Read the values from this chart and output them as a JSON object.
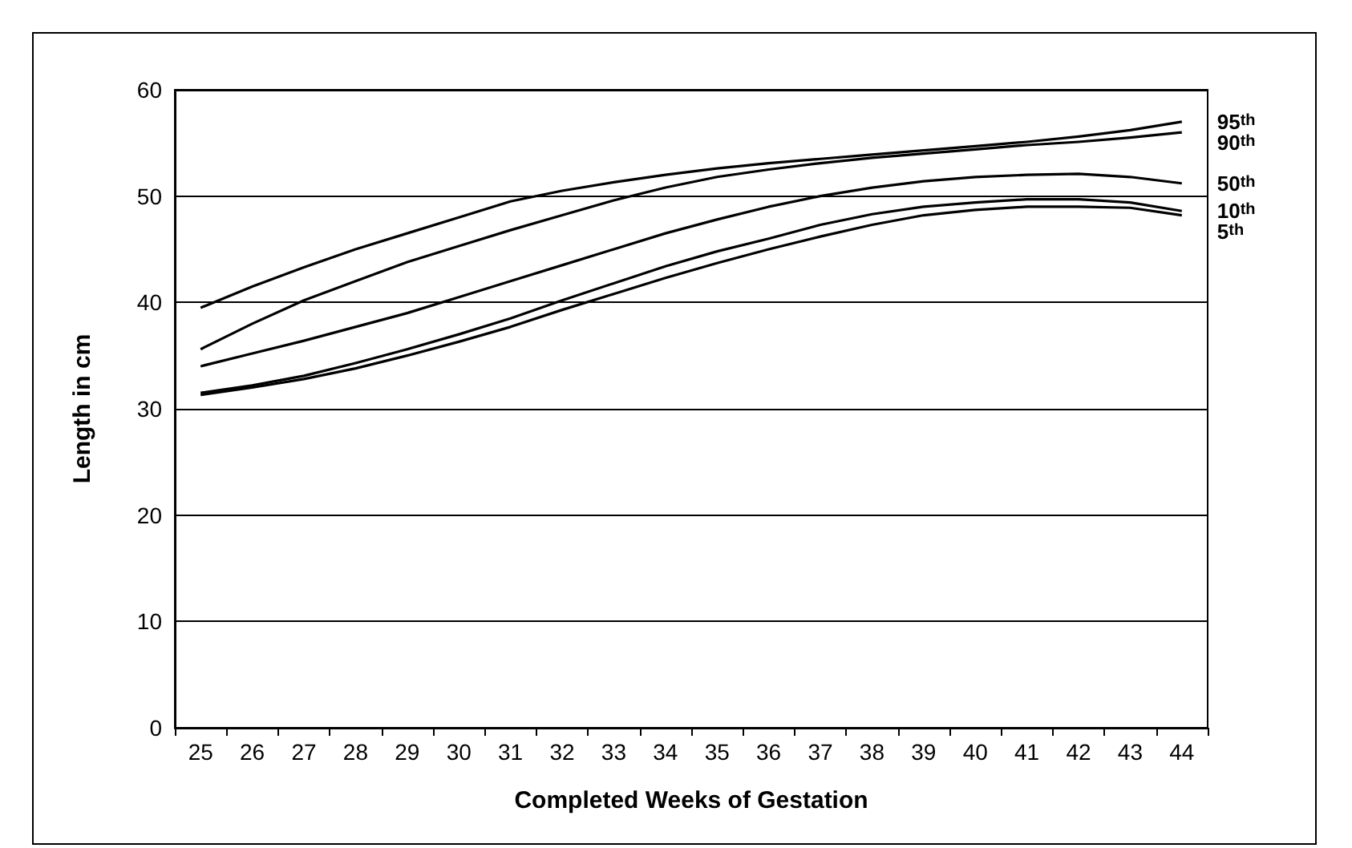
{
  "chart_data": {
    "type": "line",
    "xlabel": "Completed Weeks of Gestation",
    "ylabel": "Length in cm",
    "categories": [
      "25",
      "26",
      "27",
      "28",
      "29",
      "30",
      "31",
      "32",
      "33",
      "34",
      "35",
      "36",
      "37",
      "38",
      "39",
      "40",
      "41",
      "42",
      "43",
      "44"
    ],
    "ylim": [
      0,
      60
    ],
    "yticks": [
      0,
      10,
      20,
      30,
      40,
      50,
      60
    ],
    "grid": "y",
    "legend": false,
    "marker": "none",
    "line_style": "solid",
    "series": [
      {
        "name": "95$^{th}$",
        "color": "#000000",
        "values": [
          39.5,
          41.5,
          43.3,
          45,
          46.5,
          48,
          49.5,
          50.5,
          51.3,
          52,
          52.6,
          53.1,
          53.5,
          53.9,
          54.3,
          54.7,
          55.1,
          55.6,
          56.2,
          57
        ]
      },
      {
        "name": "90$^{th}$",
        "color": "#000000",
        "values": [
          35.6,
          38,
          40.2,
          42,
          43.8,
          45.3,
          46.8,
          48.2,
          49.6,
          50.8,
          51.8,
          52.5,
          53.1,
          53.6,
          54,
          54.4,
          54.8,
          55.1,
          55.5,
          56
        ]
      },
      {
        "name": "50$^{th}$",
        "color": "#000000",
        "values": [
          34,
          35.2,
          36.4,
          37.7,
          39,
          40.5,
          42,
          43.5,
          45,
          46.5,
          47.8,
          49,
          50,
          50.8,
          51.4,
          51.8,
          52,
          52.1,
          51.8,
          51.2
        ]
      },
      {
        "name": "10$^{th}$",
        "color": "#000000",
        "values": [
          31.5,
          32.2,
          33.1,
          34.3,
          35.6,
          37,
          38.5,
          40.2,
          41.8,
          43.4,
          44.8,
          46,
          47.3,
          48.3,
          49,
          49.4,
          49.7,
          49.7,
          49.4,
          48.6
        ]
      },
      {
        "name": "5$^{th}$",
        "color": "#000000",
        "values": [
          31.3,
          32,
          32.8,
          33.8,
          35,
          36.3,
          37.7,
          39.3,
          40.8,
          42.3,
          43.7,
          45,
          46.2,
          47.3,
          48.2,
          48.7,
          49,
          49,
          48.9,
          48.2
        ]
      }
    ]
  }
}
